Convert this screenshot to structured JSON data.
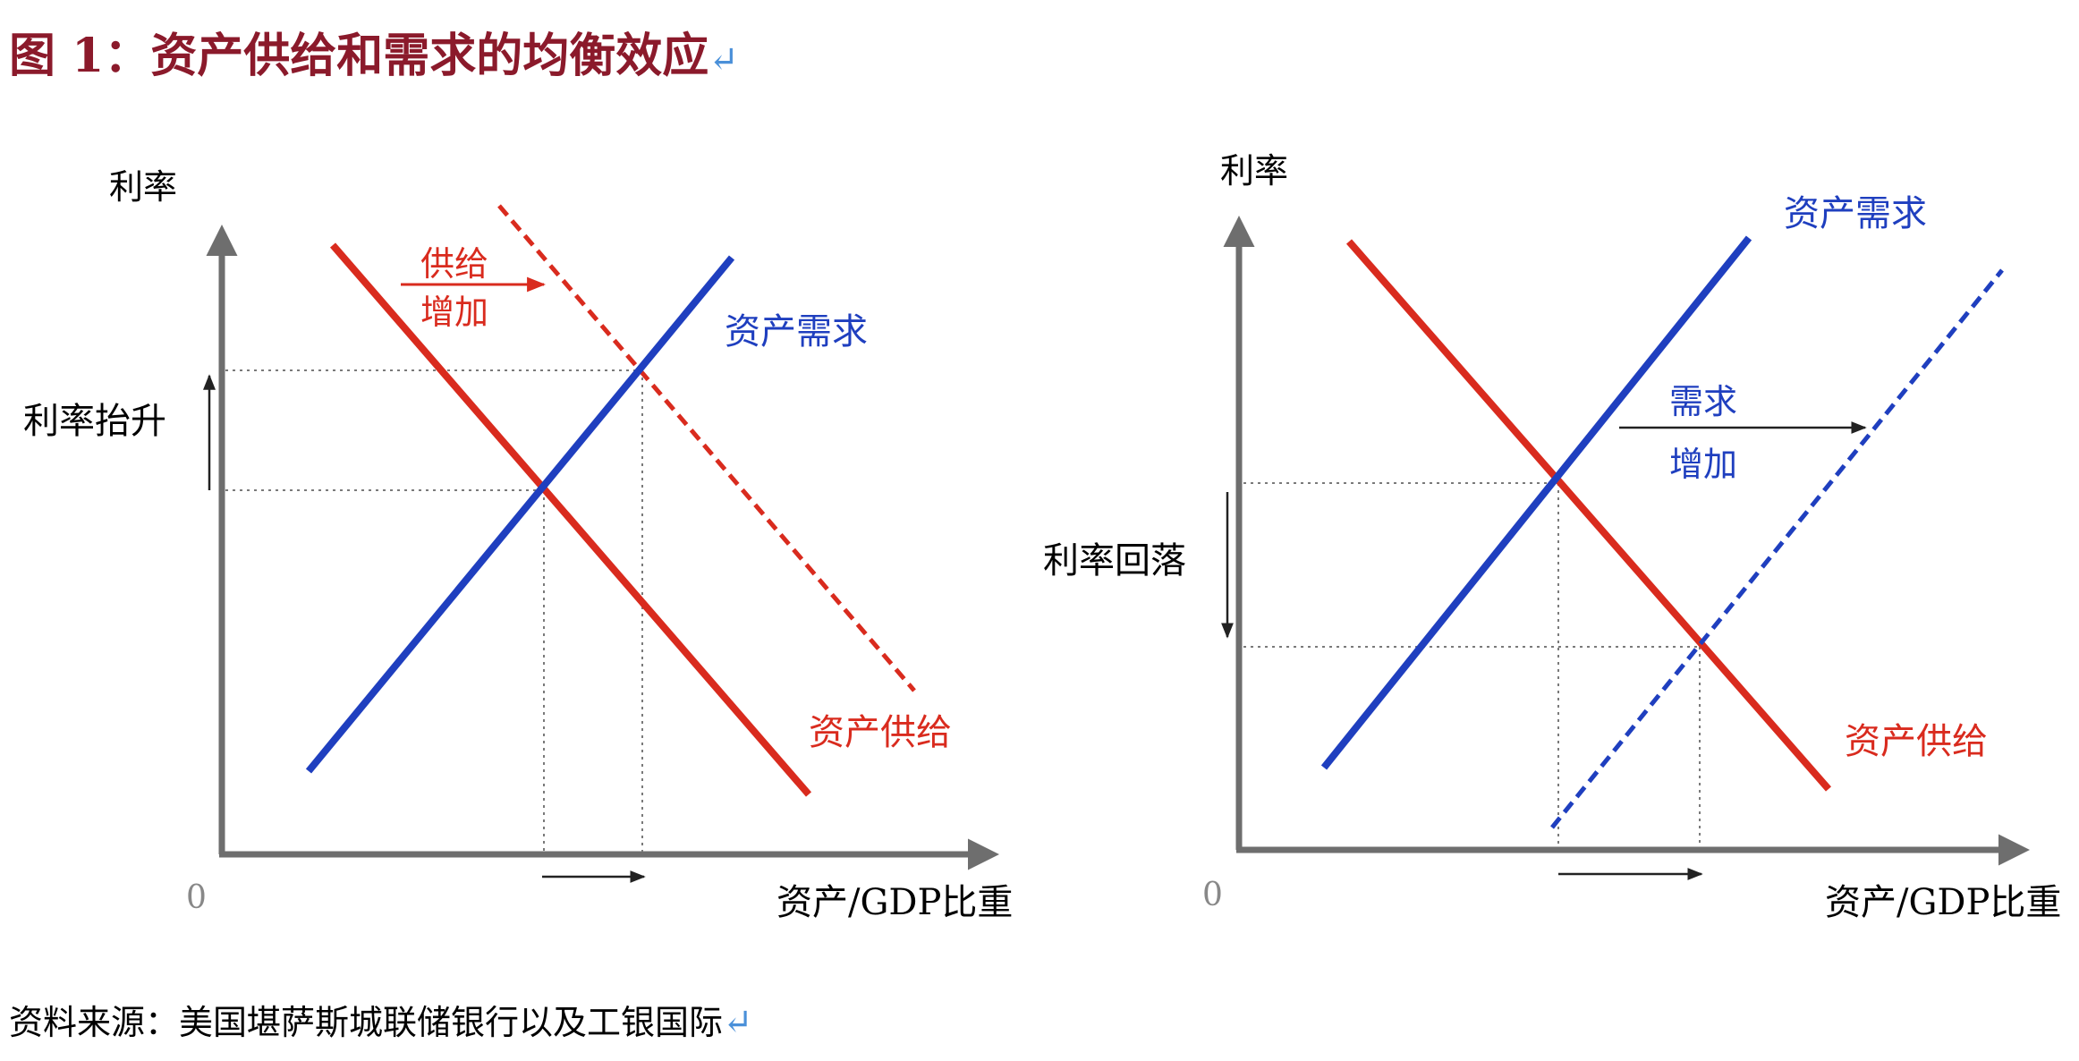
{
  "title": {
    "text": "图 1：资产供给和需求的均衡效应",
    "return_mark": "↵"
  },
  "source": {
    "text": "资料来源：美国堪萨斯城联储银行以及工银国际",
    "return_mark": "↵"
  },
  "colors": {
    "title": "#8b1a2b",
    "supply": "#d92b1e",
    "demand": "#1f3fbf",
    "axis": "#6e6e6e",
    "guide": "#7a7a7a"
  },
  "left_panel": {
    "y_axis_label": "利率",
    "x_axis_label": "资产/GDP比重",
    "origin_label": "0",
    "demand_label": "资产需求",
    "supply_label": "资产供给",
    "shift_label_line1": "供给",
    "shift_label_line2": "增加",
    "rate_change_label": "利率抬升"
  },
  "right_panel": {
    "y_axis_label": "利率",
    "x_axis_label": "资产/GDP比重",
    "origin_label": "0",
    "demand_label": "资产需求",
    "supply_label": "资产供给",
    "shift_label_line1": "需求",
    "shift_label_line2": "增加",
    "rate_change_label": "利率回落"
  }
}
